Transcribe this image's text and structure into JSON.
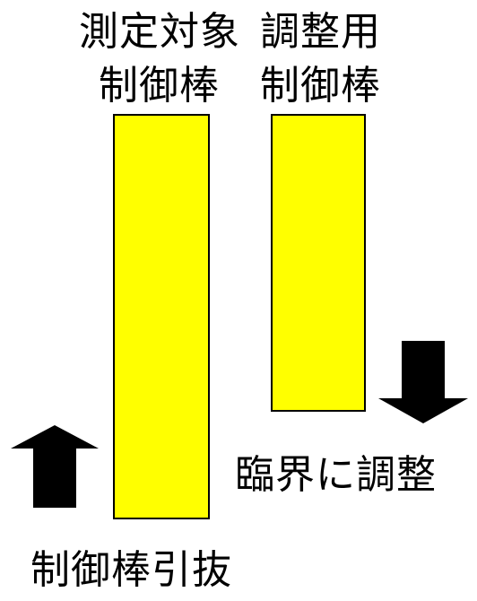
{
  "labels": {
    "measured_line1": "測定対象",
    "adjust_line1": "調整用",
    "measured_line2": "制御棒",
    "adjust_line2": "制御棒",
    "critical_adjust": "臨界に調整",
    "rod_withdrawal": "制御棒引抜"
  },
  "colors": {
    "rod_fill": "#ffff00",
    "rod_border": "#000000",
    "arrow": "#000000",
    "text": "#000000"
  },
  "icons": {
    "up_arrow": "arrow-up-icon",
    "down_arrow": "arrow-down-icon"
  }
}
